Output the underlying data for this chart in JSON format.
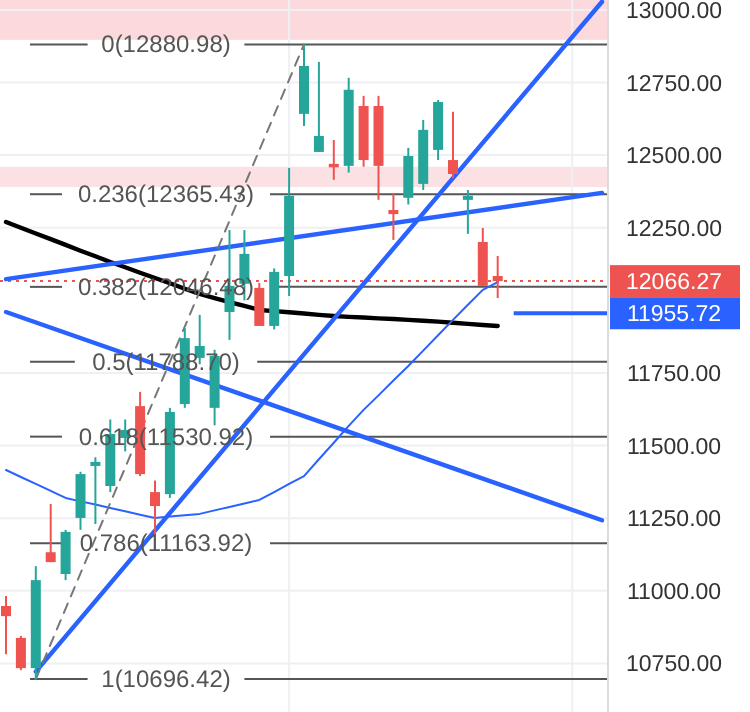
{
  "chart_data": {
    "type": "candlestick",
    "categories": [
      null,
      null,
      null,
      null,
      null,
      null,
      null,
      null,
      null,
      null,
      null,
      null,
      null,
      null,
      null,
      null,
      null,
      null,
      null,
      null,
      null,
      null,
      null,
      null,
      null,
      null,
      null,
      null,
      null,
      null,
      null,
      null,
      null,
      null,
      null,
      null,
      null,
      null,
      null,
      null,
      null
    ],
    "ohlc": [
      [
        10948,
        10982,
        10782,
        10913
      ],
      [
        10838,
        10845,
        10727,
        10734
      ],
      [
        10734,
        11085,
        10696,
        11037
      ],
      [
        11133,
        11299,
        11099,
        11099
      ],
      [
        11058,
        11210,
        11037,
        11203
      ],
      [
        11251,
        11410,
        11210,
        11402
      ],
      [
        11430,
        11460,
        11230,
        11444
      ],
      [
        11361,
        11590,
        11340,
        11540
      ],
      [
        11526,
        11590,
        11480,
        11554
      ],
      [
        11636,
        11685,
        11395,
        11402
      ],
      [
        11340,
        11380,
        11190,
        11292
      ],
      [
        11333,
        11630,
        11320,
        11616
      ],
      [
        11643,
        11905,
        11630,
        11870
      ],
      [
        11802,
        11950,
        11780,
        11843
      ],
      [
        11630,
        11830,
        11570,
        11809
      ],
      [
        11960,
        12242,
        11864,
        12050
      ],
      [
        12057,
        12242,
        12000,
        12160
      ],
      [
        12043,
        12060,
        11912,
        11912
      ],
      [
        11912,
        12110,
        11900,
        12098
      ],
      [
        12084,
        12456,
        12015,
        12360
      ],
      [
        12642,
        12880,
        12600,
        12807
      ],
      [
        12511,
        12821,
        12511,
        12566
      ],
      [
        12470,
        12552,
        12415,
        12458
      ],
      [
        12463,
        12766,
        12440,
        12725
      ],
      [
        12669,
        12704,
        12460,
        12483
      ],
      [
        12669,
        12704,
        12346,
        12463
      ],
      [
        12311,
        12366,
        12208,
        12297
      ],
      [
        12353,
        12525,
        12330,
        12497
      ],
      [
        12401,
        12621,
        12380,
        12587
      ],
      [
        12518,
        12690,
        12483,
        12683
      ],
      [
        12483,
        12649,
        12420,
        12435
      ],
      [
        12346,
        12380,
        12229,
        12360
      ],
      [
        12201,
        12249,
        12050,
        12050
      ],
      [
        12084,
        12153,
        12008,
        12066.27
      ],
      null,
      null,
      null,
      null,
      null,
      null,
      null
    ],
    "series": [
      {
        "type": "line",
        "color": "#000000",
        "values": [
          12270,
          12250,
          12230,
          12211,
          12191,
          12171,
          12152,
          12132,
          12114,
          12095,
          12077,
          12059,
          12040,
          12022,
          12008,
          11994,
          11981,
          11967,
          11963,
          11959,
          11955,
          11950,
          11946,
          11943,
          11941,
          11938,
          11936,
          11933,
          11930,
          11927,
          11923,
          11919,
          11915,
          11912,
          null,
          null,
          null,
          null,
          null,
          null,
          null
        ]
      },
      {
        "type": "line",
        "color": "#2962ff",
        "values": [
          11416,
          11392,
          11368,
          11344,
          11320,
          11308,
          11297,
          11285,
          11274,
          11262,
          11251,
          11256,
          11260,
          11265,
          11277,
          11289,
          11301,
          11313,
          11340,
          11368,
          11395,
          11453,
          11510,
          11568,
          11623,
          11673,
          11724,
          11774,
          11827,
          11880,
          11933,
          11985,
          12036,
          12063,
          null,
          null,
          null,
          null,
          null,
          null,
          null
        ]
      },
      {
        "type": "line",
        "color": "#2962ff",
        "values": [
          null,
          null,
          10722,
          null,
          null,
          null,
          null,
          null,
          null,
          null,
          null,
          null,
          null,
          null,
          null,
          null,
          null,
          null,
          null,
          null,
          null,
          null,
          null,
          null,
          null,
          null,
          null,
          null,
          null,
          null,
          null,
          null,
          null,
          null,
          null,
          null,
          null,
          null,
          null,
          null,
          13028
        ]
      },
      {
        "type": "line",
        "color": "#2962ff",
        "values": [
          12073,
          null,
          null,
          null,
          null,
          null,
          null,
          null,
          null,
          null,
          null,
          null,
          null,
          null,
          null,
          null,
          null,
          null,
          null,
          null,
          null,
          null,
          null,
          null,
          null,
          null,
          null,
          null,
          null,
          null,
          null,
          null,
          null,
          null,
          null,
          null,
          null,
          null,
          null,
          null,
          12370
        ]
      },
      {
        "type": "line",
        "color": "#2962ff",
        "values": [
          11960,
          null,
          null,
          null,
          null,
          null,
          null,
          null,
          null,
          null,
          null,
          null,
          null,
          null,
          null,
          null,
          null,
          null,
          null,
          null,
          null,
          null,
          null,
          null,
          null,
          null,
          null,
          null,
          null,
          null,
          null,
          null,
          null,
          null,
          null,
          null,
          null,
          null,
          null,
          null,
          11243
        ]
      },
      {
        "type": "line",
        "color": "#777777",
        "line_style": "dashed",
        "values": [
          null,
          null,
          10696,
          null,
          null,
          null,
          null,
          null,
          null,
          null,
          null,
          null,
          null,
          null,
          null,
          null,
          null,
          null,
          null,
          null,
          12881,
          null,
          null,
          null,
          null,
          null,
          null,
          null,
          null,
          null,
          null,
          null,
          null,
          null,
          null,
          null,
          null,
          null,
          null,
          null,
          null
        ]
      }
    ],
    "ylim": [
      10583,
      13034
    ],
    "yticks": [
      {
        "value": 10750,
        "label": "10750.00"
      },
      {
        "value": 11000,
        "label": "11000.00"
      },
      {
        "value": 11250,
        "label": "11250.00"
      },
      {
        "value": 11500,
        "label": "11500.00"
      },
      {
        "value": 11750,
        "label": "11750.00"
      },
      {
        "value": 12250,
        "label": "12250.00"
      },
      {
        "value": 12500,
        "label": "12500.00"
      },
      {
        "value": 12750,
        "label": "12750.00"
      },
      {
        "value": 13000,
        "label": "13000.00"
      }
    ],
    "tick_labels": "y",
    "grid": true,
    "ref_lines": [
      {
        "axis": "y",
        "value": 12880.98,
        "label": "0(12880.98)",
        "color": "#555555"
      },
      {
        "axis": "y",
        "value": 12365.43,
        "label": "0.236(12365.43)",
        "color": "#555555"
      },
      {
        "axis": "y",
        "value": 12046.48,
        "label": "0.382(12046.48)",
        "color": "#555555"
      },
      {
        "axis": "y",
        "value": 11788.7,
        "label": "0.5(11788.70)",
        "color": "#555555"
      },
      {
        "axis": "y",
        "value": 11530.92,
        "label": "0.618(11530.92)",
        "color": "#555555"
      },
      {
        "axis": "y",
        "value": 11163.92,
        "label": "0.786(11163.92)",
        "color": "#555555"
      },
      {
        "axis": "y",
        "value": 10696.42,
        "label": "1(10696.42)",
        "color": "#555555"
      },
      {
        "axis": "y",
        "value": 12066.27,
        "color": "#ef5350",
        "line_style": "dotted"
      },
      {
        "axis": "y",
        "value": 11955.72,
        "color": "#2962ff",
        "line_style": "solid"
      }
    ],
    "bands": [
      {
        "axis": "y",
        "from": 12897,
        "to": 13034,
        "color": "#fbd9dc"
      },
      {
        "axis": "y",
        "from": 12390,
        "to": 12460,
        "color": "#fbe0e4"
      }
    ],
    "annotations": [
      "12066.27",
      "11955.72"
    ]
  }
}
